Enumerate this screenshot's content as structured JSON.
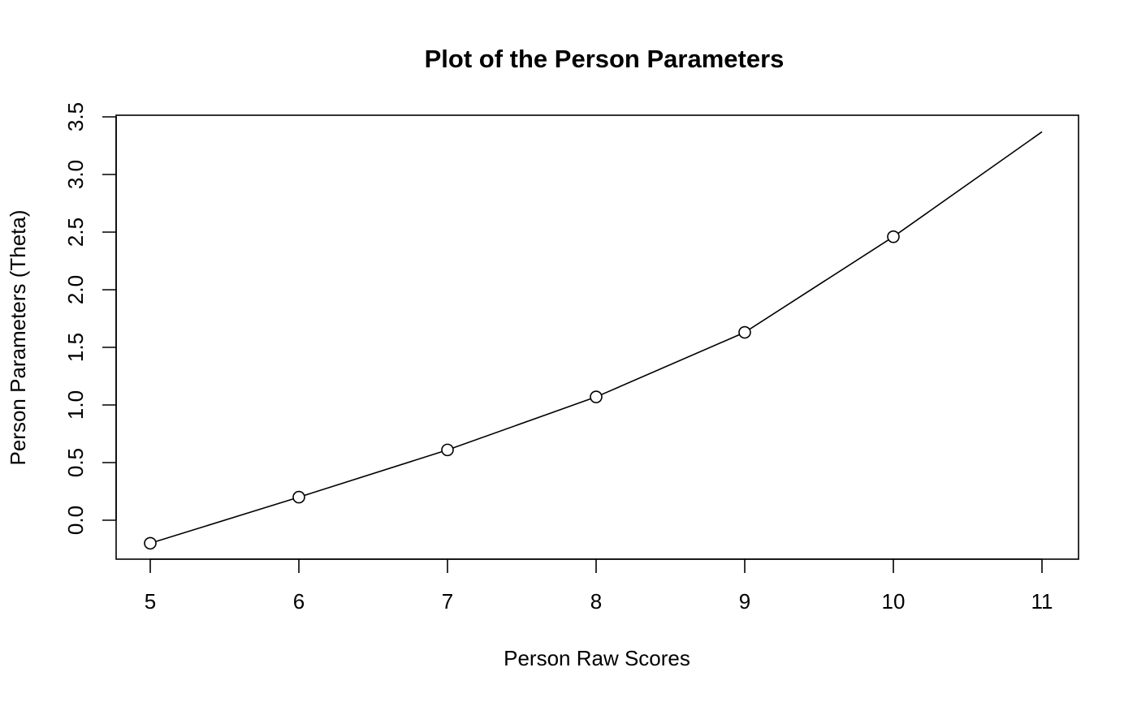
{
  "chart_data": {
    "type": "line",
    "title": "Plot of the Person Parameters",
    "xlabel": "Person Raw Scores",
    "ylabel": "Person Parameters (Theta)",
    "x_ticks": [
      5,
      6,
      7,
      8,
      9,
      10,
      11
    ],
    "x_tick_labels": [
      "5",
      "6",
      "7",
      "8",
      "9",
      "10",
      "11"
    ],
    "y_ticks": [
      0.0,
      0.5,
      1.0,
      1.5,
      2.0,
      2.5,
      3.0,
      3.5
    ],
    "y_tick_labels": [
      "0.0",
      "0.5",
      "1.0",
      "1.5",
      "2.0",
      "2.5",
      "3.0",
      "3.5"
    ],
    "xlim": [
      5,
      11
    ],
    "ylim": [
      -0.2,
      3.37
    ],
    "grid": false,
    "legend": "none",
    "series": [
      {
        "x": [
          5,
          6,
          7,
          8,
          9,
          10,
          11
        ],
        "y": [
          -0.2,
          0.2,
          0.61,
          1.07,
          1.63,
          2.46,
          3.37
        ],
        "markers": [
          true,
          true,
          true,
          true,
          true,
          true,
          false
        ],
        "color": "#000000"
      }
    ]
  }
}
